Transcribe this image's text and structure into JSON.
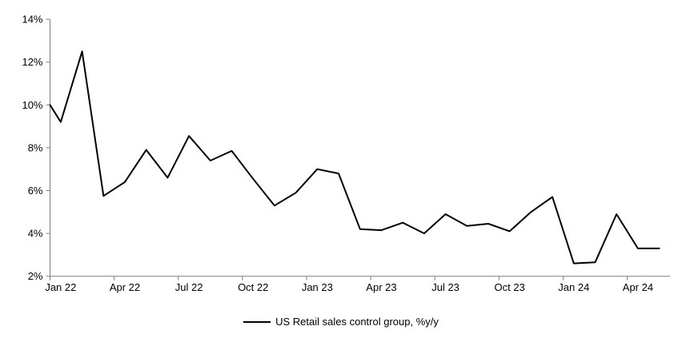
{
  "chart_data": {
    "type": "line",
    "title": "",
    "xlabel": "",
    "ylabel": "",
    "series_name": "US Retail sales control group, %y/y",
    "x": [
      "Jan 22",
      "Feb 22",
      "Mar 22",
      "Apr 22",
      "May 22",
      "Jun 22",
      "Jul 22",
      "Aug 22",
      "Sep 22",
      "Oct 22",
      "Nov 22",
      "Dec 22",
      "Jan 23",
      "Feb 23",
      "Mar 23",
      "Apr 23",
      "May 23",
      "Jun 23",
      "Jul 23",
      "Aug 23",
      "Sep 23",
      "Oct 23",
      "Nov 23",
      "Dec 23",
      "Jan 24",
      "Feb 24",
      "Mar 24",
      "Apr 24",
      "May 24"
    ],
    "values": [
      9.2,
      12.5,
      5.75,
      6.4,
      7.9,
      6.6,
      8.55,
      7.4,
      7.85,
      6.55,
      5.3,
      5.9,
      7.0,
      6.8,
      4.2,
      4.15,
      4.5,
      4.0,
      4.9,
      4.35,
      4.45,
      4.1,
      5.0,
      5.7,
      2.6,
      2.65,
      4.9,
      3.3,
      3.3
    ],
    "lead_in_value_at_left_edge": 10.0,
    "ylim": [
      2,
      14
    ],
    "y_tick_step": 2,
    "y_tick_labels": [
      "2%",
      "4%",
      "6%",
      "8%",
      "10%",
      "12%",
      "14%"
    ],
    "x_tick_labels": [
      "Jan 22",
      "Apr 22",
      "Jul 22",
      "Oct 22",
      "Jan 23",
      "Apr 23",
      "Jul 23",
      "Oct 23",
      "Jan 24",
      "Apr 24"
    ],
    "x_tick_label_interval_months": 3,
    "grid": "off",
    "legend_position": "bottom-center",
    "line_color": "#000000",
    "axis_color": "#7f7f7f",
    "text_color": "#000000"
  }
}
